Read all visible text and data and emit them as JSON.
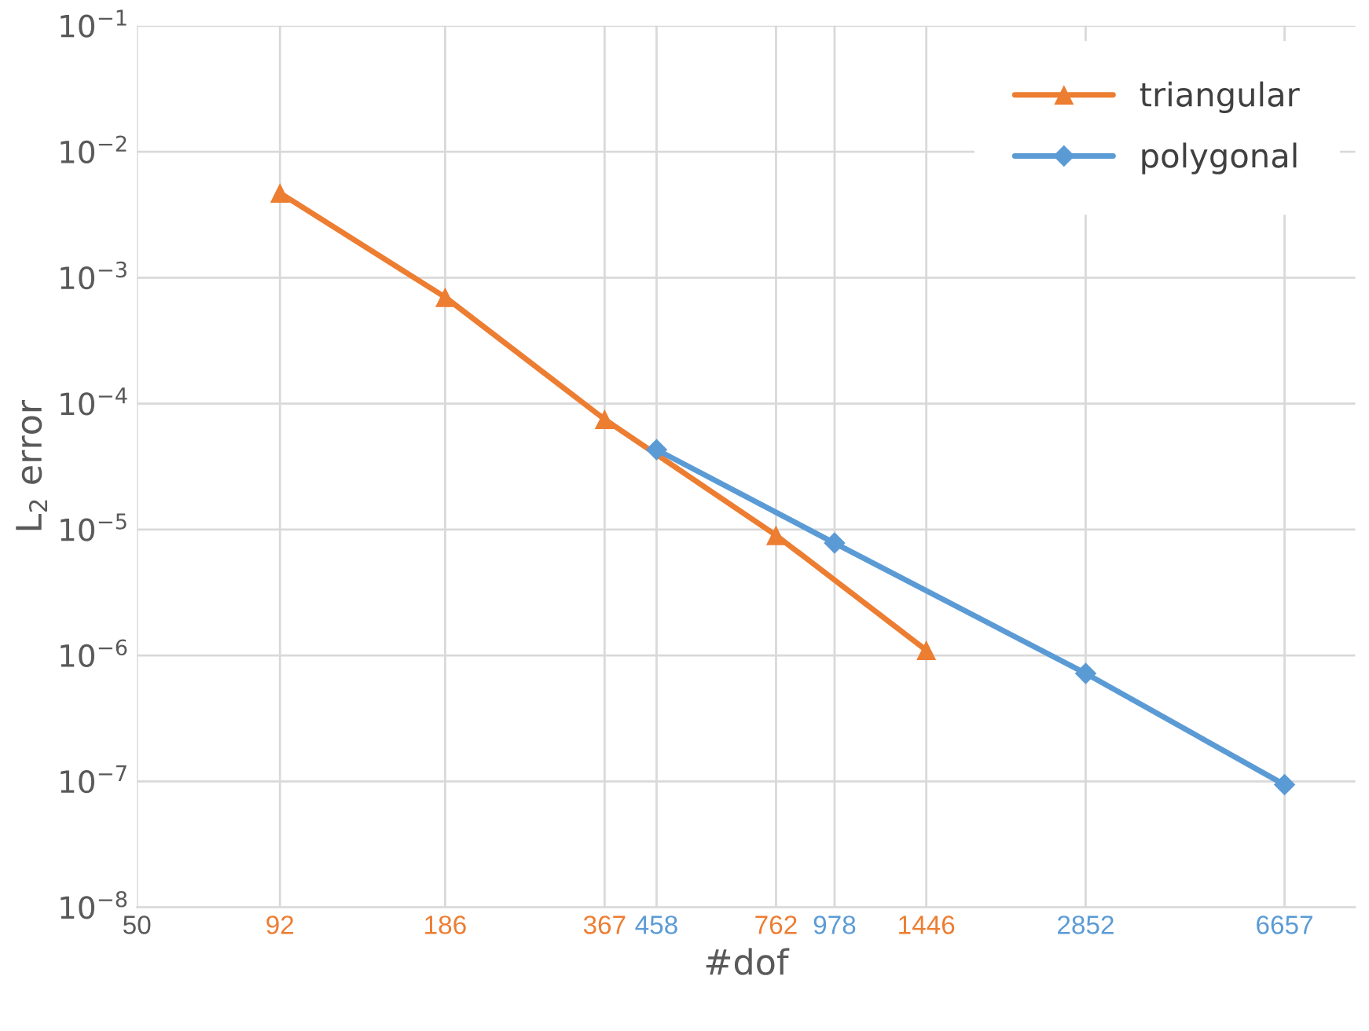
{
  "chart_data": {
    "type": "line",
    "xlabel": "#dof",
    "ylabel": "L$_{2}$ error",
    "log": "xy",
    "grid": true,
    "legend": "top right",
    "xlim": [
      50,
      9000
    ],
    "xticks": [
      50,
      92,
      186,
      367,
      458,
      762,
      978,
      1446,
      2852,
      6657
    ],
    "ylim": [
      1e-08,
      0.1
    ],
    "yticks": [
      {
        "value": 1e-08,
        "label": "10$^{−8}$"
      },
      {
        "value": 1e-07,
        "label": "10$^{−7}$"
      },
      {
        "value": 1e-06,
        "label": "10$^{−6}$"
      },
      {
        "value": 1e-05,
        "label": "10$^{−5}$"
      },
      {
        "value": 0.0001,
        "label": "10$^{−4}$"
      },
      {
        "value": 0.001,
        "label": "10$^{−3}$"
      },
      {
        "value": 0.01,
        "label": "10$^{−2}$"
      },
      {
        "value": 0.1,
        "label": "10$^{−1}$"
      }
    ],
    "series": [
      {
        "name": "triangular",
        "color": "#ed7d31",
        "marker": "triangle",
        "x": [
          92,
          186,
          367,
          762,
          1446
        ],
        "values": [
          0.0047,
          0.0007,
          7.5e-05,
          9e-06,
          1.1e-06
        ]
      },
      {
        "name": "polygonal",
        "color": "#5b9bd5",
        "marker": "diamond",
        "x": [
          458,
          978,
          2852,
          6657
        ],
        "values": [
          4.3e-05,
          7.8e-06,
          7.2e-07,
          9.4e-08
        ]
      }
    ]
  }
}
